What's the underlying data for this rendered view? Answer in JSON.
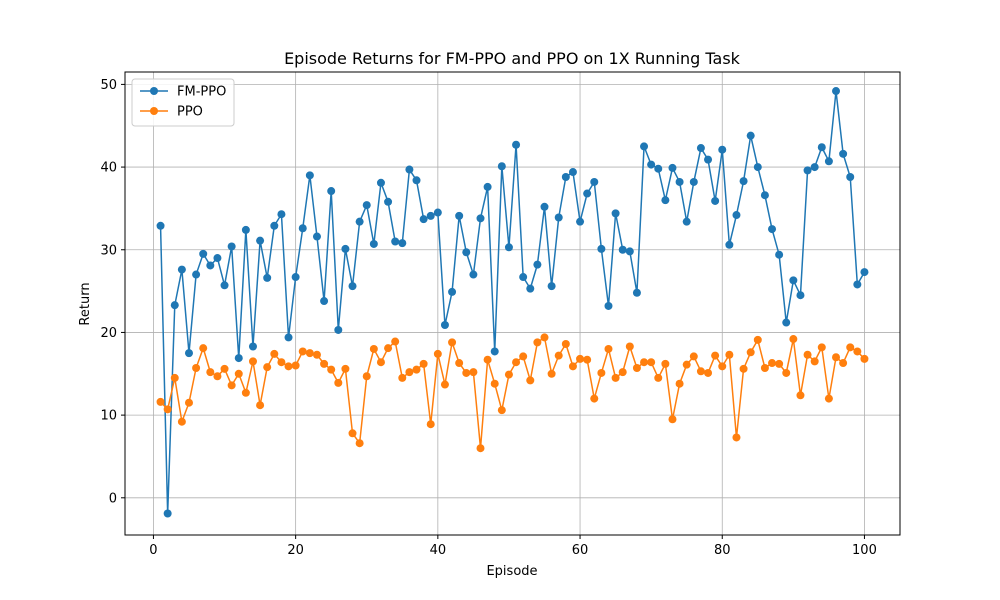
{
  "chart_data": {
    "type": "line",
    "title": "Episode Returns for FM-PPO and PPO on 1X Running Task",
    "xlabel": "Episode",
    "ylabel": "Return",
    "xlim": [
      -4,
      105
    ],
    "ylim": [
      -4.5,
      51.5
    ],
    "xticks": [
      0,
      20,
      40,
      60,
      80,
      100
    ],
    "yticks": [
      0,
      10,
      20,
      30,
      40,
      50
    ],
    "grid": true,
    "legend": "top-left",
    "x": [
      1,
      2,
      3,
      4,
      5,
      6,
      7,
      8,
      9,
      10,
      11,
      12,
      13,
      14,
      15,
      16,
      17,
      18,
      19,
      20,
      21,
      22,
      23,
      24,
      25,
      26,
      27,
      28,
      29,
      30,
      31,
      32,
      33,
      34,
      35,
      36,
      37,
      38,
      39,
      40,
      41,
      42,
      43,
      44,
      45,
      46,
      47,
      48,
      49,
      50,
      51,
      52,
      53,
      54,
      55,
      56,
      57,
      58,
      59,
      60,
      61,
      62,
      63,
      64,
      65,
      66,
      67,
      68,
      69,
      70,
      71,
      72,
      73,
      74,
      75,
      76,
      77,
      78,
      79,
      80,
      81,
      82,
      83,
      84,
      85,
      86,
      87,
      88,
      89,
      90,
      91,
      92,
      93,
      94,
      95,
      96,
      97,
      98,
      99,
      100
    ],
    "series": [
      {
        "name": "FM-PPO",
        "color": "#1f77b4",
        "marker": "circle",
        "values": [
          32.9,
          -1.9,
          23.3,
          27.6,
          17.5,
          27.0,
          29.5,
          28.1,
          29.0,
          25.7,
          30.4,
          16.9,
          32.4,
          18.3,
          31.1,
          26.6,
          32.9,
          34.3,
          19.4,
          26.7,
          32.6,
          39.0,
          31.6,
          23.8,
          37.1,
          20.3,
          30.1,
          25.6,
          33.4,
          35.4,
          30.7,
          38.1,
          35.8,
          31.0,
          30.8,
          39.7,
          38.4,
          33.7,
          34.1,
          34.5,
          20.9,
          24.9,
          34.1,
          29.7,
          27.0,
          33.8,
          37.6,
          17.7,
          40.1,
          30.3,
          42.7,
          26.7,
          25.3,
          28.2,
          35.2,
          25.6,
          33.9,
          38.8,
          39.4,
          33.4,
          36.8,
          38.2,
          30.1,
          23.2,
          34.4,
          30.0,
          29.8,
          24.8,
          42.5,
          40.3,
          39.8,
          36.0,
          39.9,
          38.2,
          33.4,
          38.2,
          42.3,
          40.9,
          35.9,
          42.1,
          30.6,
          34.2,
          38.3,
          43.8,
          40.0,
          36.6,
          32.5,
          29.4,
          21.2,
          26.3,
          24.5,
          39.6,
          40.0,
          42.4,
          40.7,
          49.2,
          41.6,
          38.8,
          25.8,
          27.3
        ]
      },
      {
        "name": "PPO",
        "color": "#ff7f0e",
        "marker": "circle",
        "values": [
          11.6,
          10.7,
          14.5,
          9.2,
          11.5,
          15.7,
          18.1,
          15.2,
          14.7,
          15.6,
          13.6,
          15.0,
          12.7,
          16.5,
          11.2,
          15.8,
          17.4,
          16.4,
          15.9,
          16.0,
          17.7,
          17.5,
          17.3,
          16.2,
          15.5,
          13.9,
          15.6,
          7.8,
          6.6,
          14.7,
          18.0,
          16.4,
          18.1,
          18.9,
          14.5,
          15.2,
          15.5,
          16.2,
          8.9,
          17.4,
          13.7,
          18.8,
          16.3,
          15.1,
          15.2,
          6.0,
          16.7,
          13.8,
          10.6,
          14.9,
          16.4,
          17.1,
          14.2,
          18.8,
          19.4,
          15.0,
          17.2,
          18.6,
          15.9,
          16.8,
          16.7,
          12.0,
          15.1,
          18.0,
          14.5,
          15.2,
          18.3,
          15.7,
          16.4,
          16.4,
          14.5,
          16.2,
          9.5,
          13.8,
          16.1,
          17.1,
          15.3,
          15.1,
          17.2,
          15.9,
          17.3,
          7.3,
          15.6,
          17.6,
          19.1,
          15.7,
          16.3,
          16.2,
          15.1,
          19.2,
          12.4,
          17.3,
          16.5,
          18.2,
          12.0,
          17.0,
          16.3,
          18.2,
          17.7,
          16.8
        ]
      }
    ]
  }
}
